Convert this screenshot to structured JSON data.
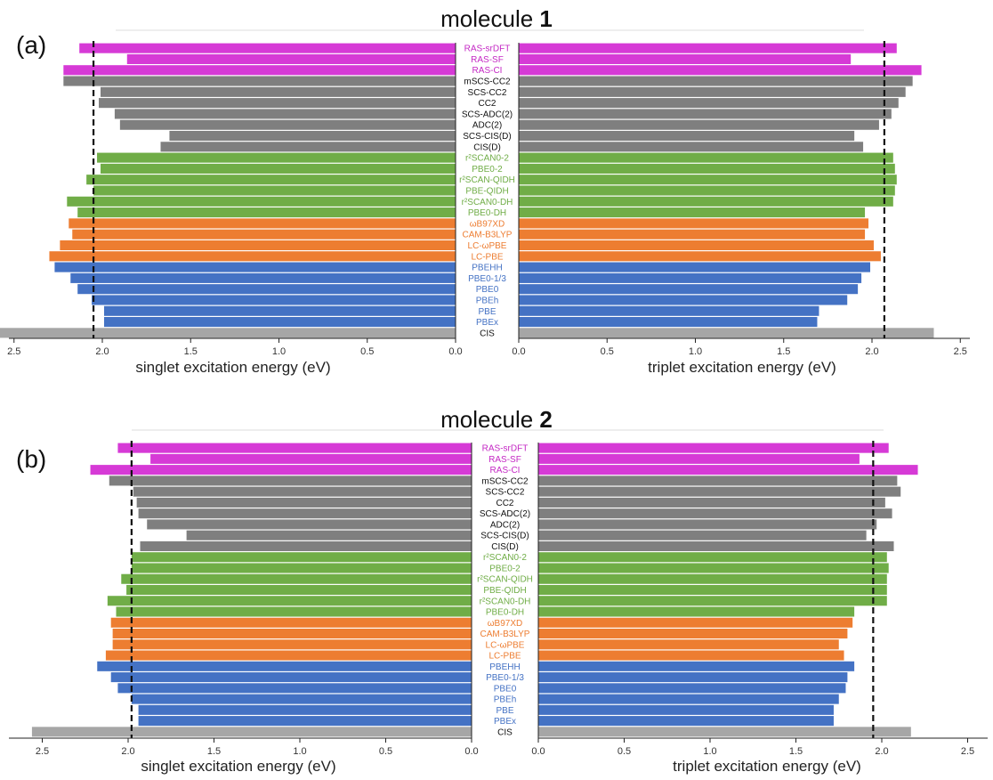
{
  "panels": [
    {
      "letter": "(a)",
      "title_prefix": "molecule ",
      "title_number": "1",
      "left_xlabel": "singlet excitation energy (eV)",
      "right_xlabel": "triplet excitation energy (eV)"
    },
    {
      "letter": "(b)",
      "title_prefix": "molecule ",
      "title_number": "2",
      "left_xlabel": "singlet excitation energy (eV)",
      "right_xlabel": "triplet excitation energy (eV)"
    }
  ],
  "group_colors": {
    "ras": "#d63ad6",
    "wfn": "#7f7f7f",
    "dh": "#70ad47",
    "rsh": "#ed7d31",
    "hyb": "#4472c4",
    "cis": "#a6a6a6"
  },
  "label_colors": {
    "ras": "#c428c4",
    "wfn": "#111111",
    "dh": "#70ad47",
    "rsh": "#ed7d31",
    "hyb": "#4472c4",
    "cis": "#111111"
  },
  "chart_data": [
    {
      "type": "bar",
      "orientation": "horizontal-mirrored",
      "title": "molecule 1",
      "categories": [
        "RAS-srDFT",
        "RAS-SF",
        "RAS-CI",
        "mSCS-CC2",
        "SCS-CC2",
        "CC2",
        "SCS-ADC(2)",
        "ADC(2)",
        "SCS-CIS(D)",
        "CIS(D)",
        "r²SCAN0-2",
        "PBE0-2",
        "r²SCAN-QIDH",
        "PBE-QIDH",
        "r²SCAN0-DH",
        "PBE0-DH",
        "ωB97XD",
        "CAM-B3LYP",
        "LC-ωPBE",
        "LC-PBE",
        "PBEHH",
        "PBE0-1/3",
        "PBE0",
        "PBEh",
        "PBE",
        "PBEx",
        "CIS"
      ],
      "groups": [
        "ras",
        "ras",
        "ras",
        "wfn",
        "wfn",
        "wfn",
        "wfn",
        "wfn",
        "wfn",
        "wfn",
        "dh",
        "dh",
        "dh",
        "dh",
        "dh",
        "dh",
        "rsh",
        "rsh",
        "rsh",
        "rsh",
        "hyb",
        "hyb",
        "hyb",
        "hyb",
        "hyb",
        "hyb",
        "cis"
      ],
      "series": [
        {
          "name": "singlet excitation energy (eV)",
          "values": [
            2.13,
            1.86,
            2.22,
            2.22,
            2.01,
            2.02,
            1.93,
            1.9,
            1.62,
            1.67,
            2.03,
            2.01,
            2.09,
            2.05,
            2.2,
            2.14,
            2.19,
            2.17,
            2.24,
            2.3,
            2.27,
            2.18,
            2.14,
            2.06,
            1.99,
            1.99,
            2.66
          ]
        },
        {
          "name": "triplet excitation energy (eV)",
          "values": [
            2.14,
            1.88,
            2.28,
            2.23,
            2.19,
            2.15,
            2.11,
            2.04,
            1.9,
            1.95,
            2.12,
            2.13,
            2.14,
            2.13,
            2.12,
            1.96,
            1.98,
            1.96,
            2.01,
            2.05,
            1.99,
            1.94,
            1.92,
            1.86,
            1.7,
            1.69,
            2.35
          ]
        }
      ],
      "reference_lines": [
        2.05,
        2.07
      ],
      "xlim": [
        0,
        2.75
      ],
      "xticks": [
        "2.5",
        "2.0",
        "1.5",
        "1.0",
        "0.5",
        "0.0"
      ],
      "xticks_right": [
        "0.0",
        "0.5",
        "1.0",
        "1.5",
        "2.0",
        "2.5"
      ],
      "xlabel": "singlet excitation energy (eV)",
      "xlabel_right": "triplet excitation energy (eV)"
    },
    {
      "type": "bar",
      "orientation": "horizontal-mirrored",
      "title": "molecule 2",
      "categories": [
        "RAS-srDFT",
        "RAS-SF",
        "RAS-CI",
        "mSCS-CC2",
        "SCS-CC2",
        "CC2",
        "SCS-ADC(2)",
        "ADC(2)",
        "SCS-CIS(D)",
        "CIS(D)",
        "r²SCAN0-2",
        "PBE0-2",
        "r²SCAN-QIDH",
        "PBE-QIDH",
        "r²SCAN0-DH",
        "PBE0-DH",
        "ωB97XD",
        "CAM-B3LYP",
        "LC-ωPBE",
        "LC-PBE",
        "PBEHH",
        "PBE0-1/3",
        "PBE0",
        "PBEh",
        "PBE",
        "PBEx",
        "CIS"
      ],
      "groups": [
        "ras",
        "ras",
        "ras",
        "wfn",
        "wfn",
        "wfn",
        "wfn",
        "wfn",
        "wfn",
        "wfn",
        "dh",
        "dh",
        "dh",
        "dh",
        "dh",
        "dh",
        "rsh",
        "rsh",
        "rsh",
        "rsh",
        "hyb",
        "hyb",
        "hyb",
        "hyb",
        "hyb",
        "hyb",
        "cis"
      ],
      "series": [
        {
          "name": "singlet excitation energy (eV)",
          "values": [
            2.06,
            1.87,
            2.22,
            2.11,
            1.97,
            1.95,
            1.94,
            1.89,
            1.66,
            1.93,
            1.98,
            1.98,
            2.04,
            2.01,
            2.12,
            2.07,
            2.1,
            2.09,
            2.09,
            2.13,
            2.18,
            2.1,
            2.06,
            1.98,
            1.94,
            1.94,
            2.56
          ]
        },
        {
          "name": "triplet excitation energy (eV)",
          "values": [
            2.04,
            1.87,
            2.21,
            2.09,
            2.11,
            2.02,
            2.06,
            1.97,
            1.91,
            2.07,
            2.03,
            2.04,
            2.03,
            2.03,
            2.03,
            1.84,
            1.83,
            1.8,
            1.75,
            1.78,
            1.84,
            1.8,
            1.79,
            1.75,
            1.72,
            1.72,
            2.17
          ]
        }
      ],
      "reference_lines": [
        1.98,
        1.95
      ],
      "xlim": [
        0,
        2.7
      ],
      "xticks": [
        "2.5",
        "2.0",
        "1.5",
        "1.0",
        "0.5",
        "0.0"
      ],
      "xticks_right": [
        "0.0",
        "0.5",
        "1.0",
        "1.5",
        "2.0",
        "2.5"
      ],
      "xlabel": "singlet excitation energy (eV)",
      "xlabel_right": "triplet excitation energy (eV)"
    }
  ]
}
